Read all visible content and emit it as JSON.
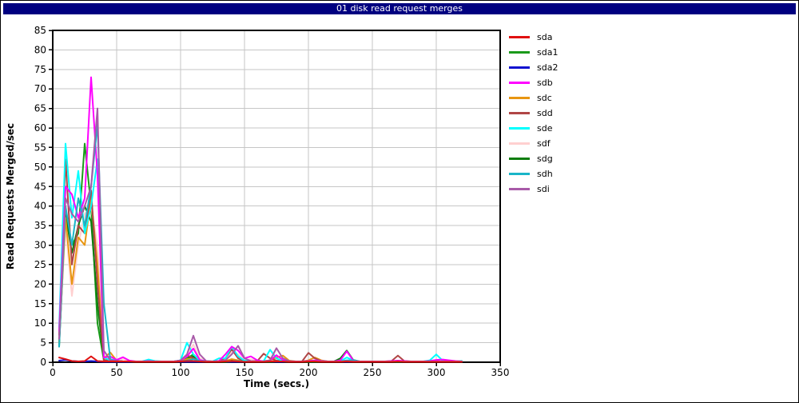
{
  "window": {
    "title": "01 disk read request merges"
  },
  "colors": {
    "titlebar_bg": "#000080",
    "titlebar_text": "#ffffff",
    "grid": "#c6c6c6",
    "axis": "#000000",
    "plot_background": "#ffffff"
  },
  "chart_data": {
    "type": "line",
    "title": "01 disk read request merges",
    "xlabel": "Time (secs.)",
    "ylabel": "Read Requests Merged/sec",
    "xlim": [
      0,
      350
    ],
    "ylim": [
      0,
      85
    ],
    "xtick_step": 50,
    "ytick_step": 5,
    "grid": true,
    "legend_position": "right",
    "x": [
      5,
      10,
      15,
      20,
      25,
      30,
      35,
      40,
      45,
      50,
      55,
      60,
      65,
      70,
      75,
      80,
      85,
      90,
      95,
      100,
      105,
      110,
      115,
      120,
      125,
      130,
      135,
      140,
      145,
      150,
      155,
      160,
      165,
      170,
      175,
      180,
      185,
      190,
      195,
      200,
      205,
      210,
      215,
      220,
      225,
      230,
      235,
      240,
      245,
      250,
      255,
      260,
      265,
      270,
      275,
      280,
      285,
      290,
      295,
      300,
      305,
      310,
      315,
      320
    ],
    "series": [
      {
        "name": "sda",
        "color": "#e01010",
        "values": [
          1.2,
          0.8,
          0.3,
          0.2,
          0.3,
          1.5,
          0.3,
          0.2,
          0.2,
          0.2,
          0.2,
          0.2,
          0.1,
          0.1,
          0.1,
          0.1,
          0.1,
          0.1,
          0.1,
          0.2,
          0.3,
          0.3,
          0.2,
          0.1,
          0.1,
          0.1,
          0.2,
          0.3,
          0.2,
          0.1,
          0.1,
          0.1,
          0.1,
          0.2,
          0.2,
          0.2,
          0.1,
          0.1,
          0.1,
          0.2,
          0.2,
          0.1,
          0.1,
          0.1,
          0.1,
          0.2,
          0.1,
          0.1,
          0.1,
          0.1,
          0.1,
          0.1,
          0.1,
          0.2,
          0.1,
          0.1,
          0.1,
          0.1,
          0.1,
          0.1,
          0.1,
          0.1,
          0.1,
          0.1
        ]
      },
      {
        "name": "sda1",
        "color": "#1a9a1a",
        "values": [
          5,
          38,
          30,
          33,
          56,
          40,
          10,
          0.5,
          0.3,
          0.2,
          0.2,
          0.2,
          0.1,
          0.1,
          0.1,
          0.1,
          0.1,
          0.1,
          0.1,
          0.3,
          1.0,
          2.0,
          0.5,
          0.2,
          0.1,
          0.1,
          0.1,
          0.3,
          0.3,
          0.2,
          0.1,
          0.1,
          0.1,
          0.1,
          0.2,
          0.2,
          0.1,
          0.1,
          0.1,
          0.1,
          0.1,
          0.1,
          0.1,
          0.1,
          0.1,
          0.3,
          0.2,
          0.1,
          0.1,
          0.1,
          0.1,
          0.1,
          0.1,
          0.1,
          0.1,
          0.1,
          0.1,
          0.1,
          0.1,
          0.1,
          0.1,
          0.1,
          0.1,
          0.1
        ]
      },
      {
        "name": "sda2",
        "color": "#1212d0",
        "values": [
          0.4,
          0.6,
          0.3,
          0.2,
          0.2,
          0.3,
          0.2,
          0.1,
          0.1,
          0.1,
          0.1,
          0.1,
          0.1,
          0.1,
          0.1,
          0.1,
          0.1,
          0.1,
          0.1,
          0.1,
          0.1,
          0.1,
          0.1,
          0.1,
          0.1,
          0.1,
          0.1,
          0.1,
          0.1,
          0.1,
          0.1,
          0.1,
          0.1,
          0.1,
          0.1,
          0.1,
          0.1,
          0.1,
          0.1,
          0.1,
          0.1,
          0.1,
          0.1,
          0.1,
          0.1,
          0.1,
          0.1,
          0.1,
          0.1,
          0.1,
          0.1,
          0.1,
          0.1,
          0.1,
          0.1,
          0.1,
          0.1,
          0.1,
          0.1,
          0.1,
          0.1,
          0.1,
          0.1,
          0.1
        ]
      },
      {
        "name": "sdb",
        "color": "#ff00ff",
        "values": [
          8,
          45,
          43,
          37,
          42,
          73,
          48,
          1.2,
          1.5,
          0.6,
          1.3,
          0.4,
          0.2,
          0.2,
          0.3,
          0.2,
          0.2,
          0.2,
          0.2,
          0.4,
          1.5,
          3.5,
          0.6,
          0.2,
          0.2,
          0.3,
          2.0,
          4.0,
          3.0,
          1.0,
          1.5,
          0.5,
          0.2,
          0.5,
          1.8,
          0.6,
          0.2,
          0.2,
          0.2,
          0.3,
          0.5,
          0.3,
          0.2,
          0.2,
          0.5,
          2.8,
          0.5,
          0.2,
          0.2,
          0.2,
          0.2,
          0.2,
          0.3,
          0.4,
          0.3,
          0.2,
          0.2,
          0.2,
          0.3,
          0.6,
          0.7,
          0.5,
          0.3,
          0.2
        ]
      },
      {
        "name": "sdc",
        "color": "#e89611",
        "values": [
          5,
          37,
          20,
          32,
          30,
          42,
          25,
          1.0,
          2.5,
          0.4,
          0.2,
          0.2,
          0.2,
          0.2,
          0.2,
          0.2,
          0.2,
          0.2,
          0.2,
          0.3,
          0.8,
          1.0,
          0.4,
          0.2,
          0.2,
          0.2,
          0.3,
          0.8,
          0.5,
          0.3,
          0.2,
          0.2,
          0.3,
          0.5,
          1.2,
          1.7,
          0.4,
          0.2,
          0.2,
          0.5,
          1.2,
          0.5,
          0.2,
          0.2,
          0.2,
          0.4,
          0.3,
          0.2,
          0.2,
          0.2,
          0.2,
          0.2,
          0.2,
          0.2,
          0.2,
          0.2,
          0.2,
          0.2,
          0.2,
          0.2,
          0.2,
          0.2,
          0.2,
          0.2
        ]
      },
      {
        "name": "sdd",
        "color": "#b04545",
        "values": [
          7,
          52,
          25,
          35,
          33,
          44,
          20,
          0.6,
          0.4,
          0.3,
          0.2,
          0.2,
          0.2,
          0.2,
          0.2,
          0.2,
          0.2,
          0.2,
          0.2,
          0.5,
          1.8,
          1.0,
          0.4,
          0.2,
          0.2,
          0.3,
          1.0,
          3.3,
          1.0,
          0.3,
          0.2,
          0.3,
          2.2,
          1.0,
          0.4,
          0.3,
          0.2,
          0.2,
          0.2,
          2.4,
          1.0,
          0.3,
          0.2,
          0.2,
          0.2,
          0.3,
          0.2,
          0.2,
          0.2,
          0.2,
          0.2,
          0.2,
          0.3,
          1.7,
          0.3,
          0.2,
          0.2,
          0.2,
          0.2,
          0.2,
          0.2,
          0.2,
          0.2,
          0.2
        ]
      },
      {
        "name": "sde",
        "color": "#00ffff",
        "values": [
          9,
          56,
          37,
          49,
          33,
          40,
          52,
          1.2,
          0.5,
          0.3,
          0.2,
          0.2,
          0.2,
          0.2,
          0.7,
          0.3,
          0.2,
          0.2,
          0.2,
          0.5,
          5.0,
          2.0,
          0.5,
          0.3,
          0.2,
          1.0,
          1.0,
          4.0,
          1.5,
          0.4,
          0.2,
          0.2,
          0.3,
          3.2,
          1.0,
          0.3,
          0.2,
          0.2,
          0.2,
          0.3,
          0.4,
          0.3,
          0.2,
          0.2,
          0.3,
          1.2,
          0.5,
          0.2,
          0.2,
          0.2,
          0.2,
          0.2,
          0.2,
          0.2,
          0.2,
          0.2,
          0.2,
          0.2,
          0.5,
          2.0,
          0.4,
          0.2,
          0.2,
          0.3
        ]
      },
      {
        "name": "sdf",
        "color": "#ffd0d0",
        "values": [
          6,
          35,
          17,
          30,
          38,
          40,
          30,
          0.6,
          0.4,
          0.2,
          0.8,
          0.3,
          0.2,
          0.2,
          0.2,
          0.2,
          0.2,
          0.2,
          0.2,
          0.4,
          2.0,
          4.5,
          1.0,
          0.3,
          0.2,
          0.2,
          0.5,
          2.5,
          2.0,
          0.5,
          0.8,
          0.3,
          0.2,
          0.2,
          0.5,
          0.4,
          0.2,
          0.2,
          0.2,
          0.2,
          0.3,
          0.2,
          0.2,
          0.2,
          0.2,
          0.3,
          0.2,
          0.2,
          0.2,
          0.2,
          0.2,
          0.2,
          0.2,
          0.2,
          0.2,
          0.2,
          0.2,
          0.2,
          0.2,
          0.2,
          0.2,
          0.2,
          0.2,
          0.2
        ]
      },
      {
        "name": "sdg",
        "color": "#0e7d0e",
        "values": [
          4,
          38,
          28,
          35,
          40,
          36,
          15,
          0.5,
          0.3,
          0.2,
          0.2,
          0.2,
          0.2,
          0.2,
          0.2,
          0.2,
          0.2,
          0.2,
          0.2,
          0.3,
          0.8,
          1.5,
          0.4,
          0.2,
          0.2,
          0.2,
          0.2,
          0.4,
          0.3,
          0.2,
          0.2,
          0.2,
          0.2,
          0.2,
          0.3,
          0.3,
          0.2,
          0.2,
          0.2,
          0.2,
          0.2,
          0.2,
          0.2,
          0.2,
          1.0,
          3.0,
          0.6,
          0.2,
          0.2,
          0.2,
          0.2,
          0.2,
          0.2,
          0.2,
          0.2,
          0.2,
          0.2,
          0.2,
          0.2,
          0.2,
          0.2,
          0.2,
          0.2,
          0.2
        ]
      },
      {
        "name": "sdh",
        "color": "#19b5c8",
        "values": [
          4,
          40,
          30,
          42,
          35,
          45,
          61,
          15,
          0.8,
          0.3,
          0.2,
          0.2,
          0.2,
          0.2,
          0.2,
          0.2,
          0.2,
          0.2,
          0.2,
          0.2,
          0.4,
          0.8,
          0.3,
          0.2,
          0.2,
          0.2,
          0.2,
          0.3,
          0.3,
          0.2,
          0.2,
          0.2,
          0.2,
          0.2,
          0.2,
          0.2,
          0.2,
          0.2,
          0.2,
          0.2,
          0.2,
          0.2,
          0.2,
          0.2,
          0.2,
          0.5,
          0.5,
          0.2,
          0.2,
          0.2,
          0.2,
          0.2,
          0.2,
          0.2,
          0.2,
          0.2,
          0.2,
          0.2,
          0.2,
          0.2,
          0.2,
          0.2,
          0.2,
          0.2
        ]
      },
      {
        "name": "sdi",
        "color": "#a85aa8",
        "values": [
          6,
          42,
          38,
          36,
          40,
          45,
          65,
          3,
          0.5,
          0.3,
          0.2,
          0.2,
          0.2,
          0.2,
          0.2,
          0.2,
          0.2,
          0.2,
          0.2,
          0.5,
          2.0,
          6.8,
          2.0,
          0.3,
          0.2,
          0.2,
          0.5,
          2.0,
          4.2,
          1.0,
          0.3,
          0.2,
          0.2,
          0.5,
          3.6,
          1.0,
          0.3,
          0.2,
          0.2,
          0.2,
          0.3,
          0.2,
          0.2,
          0.2,
          0.2,
          0.3,
          0.2,
          0.2,
          0.2,
          0.2,
          0.2,
          0.2,
          0.2,
          0.2,
          0.2,
          0.2,
          0.2,
          0.2,
          0.2,
          0.2,
          0.2,
          0.2,
          0.2,
          0.2
        ]
      }
    ]
  }
}
